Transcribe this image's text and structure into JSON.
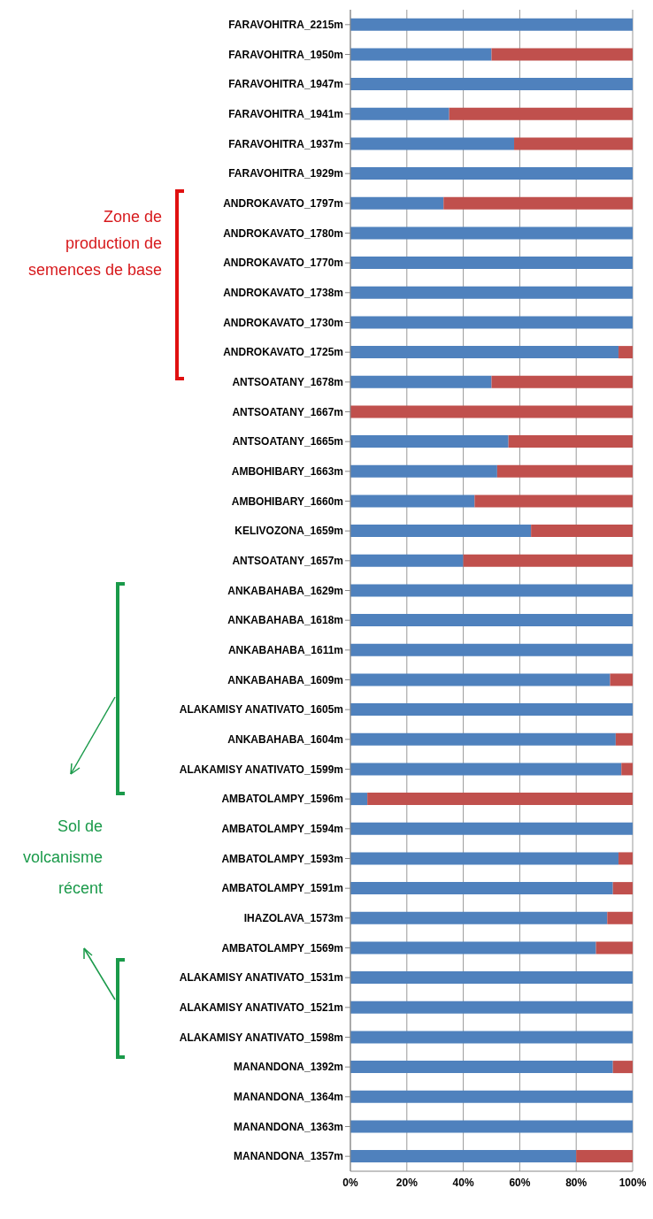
{
  "chart_data": {
    "type": "bar",
    "orientation": "horizontal",
    "stacked": true,
    "categories": [
      "FARAVOHITRA_2215m",
      "FARAVOHITRA_1950m",
      "FARAVOHITRA_1947m",
      "FARAVOHITRA_1941m",
      "FARAVOHITRA_1937m",
      "FARAVOHITRA_1929m",
      "ANDROKAVATO_1797m",
      "ANDROKAVATO_1780m",
      "ANDROKAVATO_1770m",
      "ANDROKAVATO_1738m",
      "ANDROKAVATO_1730m",
      "ANDROKAVATO_1725m",
      "ANTSOATANY_1678m",
      "ANTSOATANY_1667m",
      "ANTSOATANY_1665m",
      "AMBOHIBARY_1663m",
      "AMBOHIBARY_1660m",
      "KELIVOZONA_1659m",
      "ANTSOATANY_1657m",
      "ANKABAHABA_1629m",
      "ANKABAHABA_1618m",
      "ANKABAHABA_1611m",
      "ANKABAHABA_1609m",
      "ALAKAMISY ANATIVATO_1605m",
      "ANKABAHABA_1604m",
      "ALAKAMISY ANATIVATO_1599m",
      "AMBATOLAMPY_1596m",
      "AMBATOLAMPY_1594m",
      "AMBATOLAMPY_1593m",
      "AMBATOLAMPY_1591m",
      "IHAZOLAVA_1573m",
      "AMBATOLAMPY_1569m",
      "ALAKAMISY ANATIVATO_1531m",
      "ALAKAMISY ANATIVATO_1521m",
      "ALAKAMISY ANATIVATO_1598m",
      "MANANDONA_1392m",
      "MANANDONA_1364m",
      "MANANDONA_1363m",
      "MANANDONA_1357m"
    ],
    "series": [
      {
        "color": "#4f81bd",
        "values": [
          100,
          50,
          100,
          35,
          58,
          100,
          33,
          100,
          100,
          100,
          100,
          95,
          50,
          0,
          56,
          52,
          44,
          64,
          40,
          100,
          100,
          100,
          92,
          100,
          94,
          96,
          6,
          100,
          95,
          93,
          91,
          87,
          100,
          100,
          100,
          93,
          100,
          100,
          80
        ]
      },
      {
        "color": "#c0504d",
        "values": [
          0,
          50,
          0,
          65,
          42,
          0,
          67,
          0,
          0,
          0,
          0,
          5,
          50,
          100,
          44,
          48,
          56,
          36,
          60,
          0,
          0,
          0,
          8,
          0,
          6,
          4,
          94,
          0,
          5,
          7,
          9,
          13,
          0,
          0,
          0,
          7,
          0,
          0,
          20
        ]
      }
    ],
    "xlim": [
      0,
      100
    ],
    "xticks": [
      {
        "value": 0,
        "label": "0%"
      },
      {
        "value": 20,
        "label": "20%"
      },
      {
        "value": 40,
        "label": "40%"
      },
      {
        "value": 60,
        "label": "60%"
      },
      {
        "value": 80,
        "label": "80%"
      },
      {
        "value": 100,
        "label": "100%"
      }
    ],
    "grid": "x",
    "annotations": [
      "Zone de production de semences de base",
      "Sol de volcanisme récent"
    ]
  }
}
